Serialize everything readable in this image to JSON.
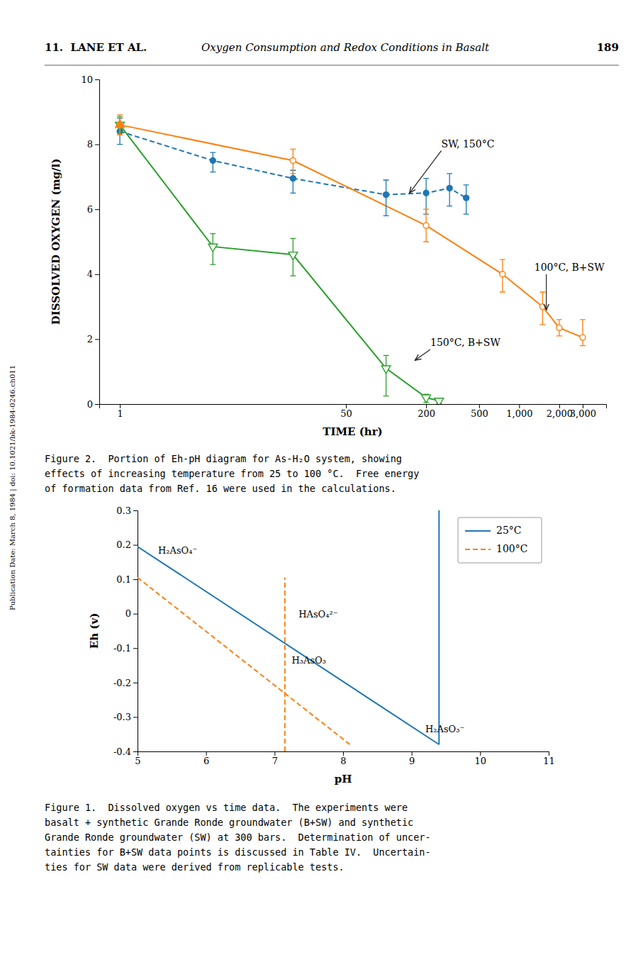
{
  "header": {
    "left": "11.  LANE ET AL.",
    "center": "Oxygen Consumption and Redox Conditions in Basalt",
    "right": "189"
  },
  "sidebar": "Publication Date: March 8, 1984 | doi: 10.1021/bk-1984-0246.ch011",
  "chart_data": [
    {
      "type": "line",
      "caption": "Figure 1.  Dissolved oxygen vs time data.  The experiments were\nbasalt + synthetic Grande Ronde groundwater (B+SW) and synthetic\nGrande Ronde groundwater (SW) at 300 bars.  Determination of uncer-\ntainties for B+SW data points is discussed in Table IV.  Uncertain-\nties for SW data were derived from replicable tests.",
      "xlabel": "TIME (hr)",
      "ylabel": "DISSOLVED OXYGEN (mg/l)",
      "log": "x",
      "grid": false,
      "xlim": [
        0.7,
        4500
      ],
      "ylim": [
        0,
        10
      ],
      "xticks": [
        1,
        50,
        200,
        500,
        {
          "value": 1000,
          "label": "1,000"
        },
        {
          "value": 2000,
          "label": "2,000"
        },
        {
          "value": 3000,
          "label": "3,000"
        }
      ],
      "yticks": [
        0,
        2,
        4,
        6,
        8,
        10
      ],
      "series": [
        {
          "x": [
            1,
            5,
            20,
            100,
            200,
            300,
            400
          ],
          "values": [
            8.4,
            7.5,
            6.95,
            6.45,
            6.5,
            6.65,
            6.35
          ],
          "error_low": [
            0.4,
            0.35,
            0.45,
            0.65,
            0.65,
            0.55,
            0.5
          ],
          "error_high": [
            0.4,
            0.25,
            0.25,
            0.45,
            0.45,
            0.45,
            0.4
          ],
          "color": "#1f77b4",
          "marker": "circle",
          "line_style": "dashed"
        },
        {
          "x": [
            1,
            20,
            200,
            750,
            1500,
            2000,
            3000
          ],
          "values": [
            8.6,
            7.5,
            5.5,
            4.0,
            3.0,
            2.35,
            2.05
          ],
          "error_low": [
            0.3,
            0.4,
            0.5,
            0.55,
            0.55,
            0.25,
            0.25
          ],
          "error_high": [
            0.3,
            0.35,
            0.5,
            0.45,
            0.45,
            0.25,
            0.55
          ],
          "color": "#ff7f0e",
          "marker": "circle-open",
          "line_style": "solid"
        },
        {
          "x": [
            1,
            5,
            20,
            100,
            200,
            250
          ],
          "values": [
            8.6,
            4.85,
            4.6,
            1.1,
            0.2,
            0.1
          ],
          "error_low": [
            0.25,
            0.55,
            0.65,
            0.85,
            0.15,
            0.08
          ],
          "error_high": [
            0.25,
            0.4,
            0.5,
            0.4,
            0.1,
            0.08
          ],
          "color": "#2ca02c",
          "marker": "triangle-down-open",
          "line_style": "solid"
        },
        {
          "x": [
            1
          ],
          "values": [
            8.6
          ],
          "error_low": [
            0.3
          ],
          "error_high": [
            0.3
          ],
          "color": "#ff7f0e",
          "marker": "triangle-up",
          "line_style": "none"
        }
      ],
      "annotations": [
        {
          "text": "SW, 150°C",
          "x": 260,
          "y": 8.0,
          "arrow_x": 150,
          "arrow_y": 6.5
        },
        {
          "text": "100°C, B+SW",
          "x": 1300,
          "y": 4.2,
          "arrow_x": 1600,
          "arrow_y": 2.9
        },
        {
          "text": "150°C, B+SW",
          "x": 215,
          "y": 1.88,
          "arrow_x": 165,
          "arrow_y": 1.35
        }
      ]
    },
    {
      "type": "line",
      "caption": "Figure 2.  Portion of Eh-pH diagram for As-H₂O system, showing\neffects of increasing temperature from 25 to 100 °C.  Free energy\nof formation data from Ref. 16 were used in the calculations.",
      "xlabel": "pH",
      "ylabel": "Eh (v)",
      "grid": false,
      "legend": "top-right",
      "xlim": [
        5,
        11
      ],
      "ylim": [
        -0.4,
        0.3
      ],
      "xticks": [
        5,
        6,
        7,
        8,
        9,
        10,
        11
      ],
      "yticks": [
        -0.4,
        -0.3,
        -0.2,
        -0.1,
        0,
        0.1,
        0.2,
        0.3
      ],
      "series": [
        {
          "name": "25°C",
          "x": [
            5.0,
            9.4
          ],
          "values": [
            0.195,
            -0.38
          ],
          "color": "#1f77b4",
          "line_style": "solid"
        },
        {
          "x": [
            9.4,
            9.4
          ],
          "values": [
            -0.38,
            0.3
          ],
          "color": "#1f77b4",
          "line_style": "solid"
        },
        {
          "name": "100°C",
          "x": [
            5.0,
            8.1
          ],
          "values": [
            0.105,
            -0.38
          ],
          "color": "#ff7f0e",
          "line_style": "dashed"
        },
        {
          "x": [
            7.15,
            7.15
          ],
          "values": [
            -0.4,
            0.105
          ],
          "color": "#ff7f0e",
          "line_style": "dashed"
        }
      ],
      "annotations": [
        {
          "text": "H₂AsO₄⁻",
          "x": 5.3,
          "y": 0.175
        },
        {
          "text": "HAsO₄²⁻",
          "x": 7.35,
          "y": -0.01
        },
        {
          "text": "H₃AsO₃",
          "x": 7.25,
          "y": -0.145
        },
        {
          "text": "H₂AsO₃⁻",
          "x": 9.2,
          "y": -0.345
        }
      ]
    }
  ]
}
